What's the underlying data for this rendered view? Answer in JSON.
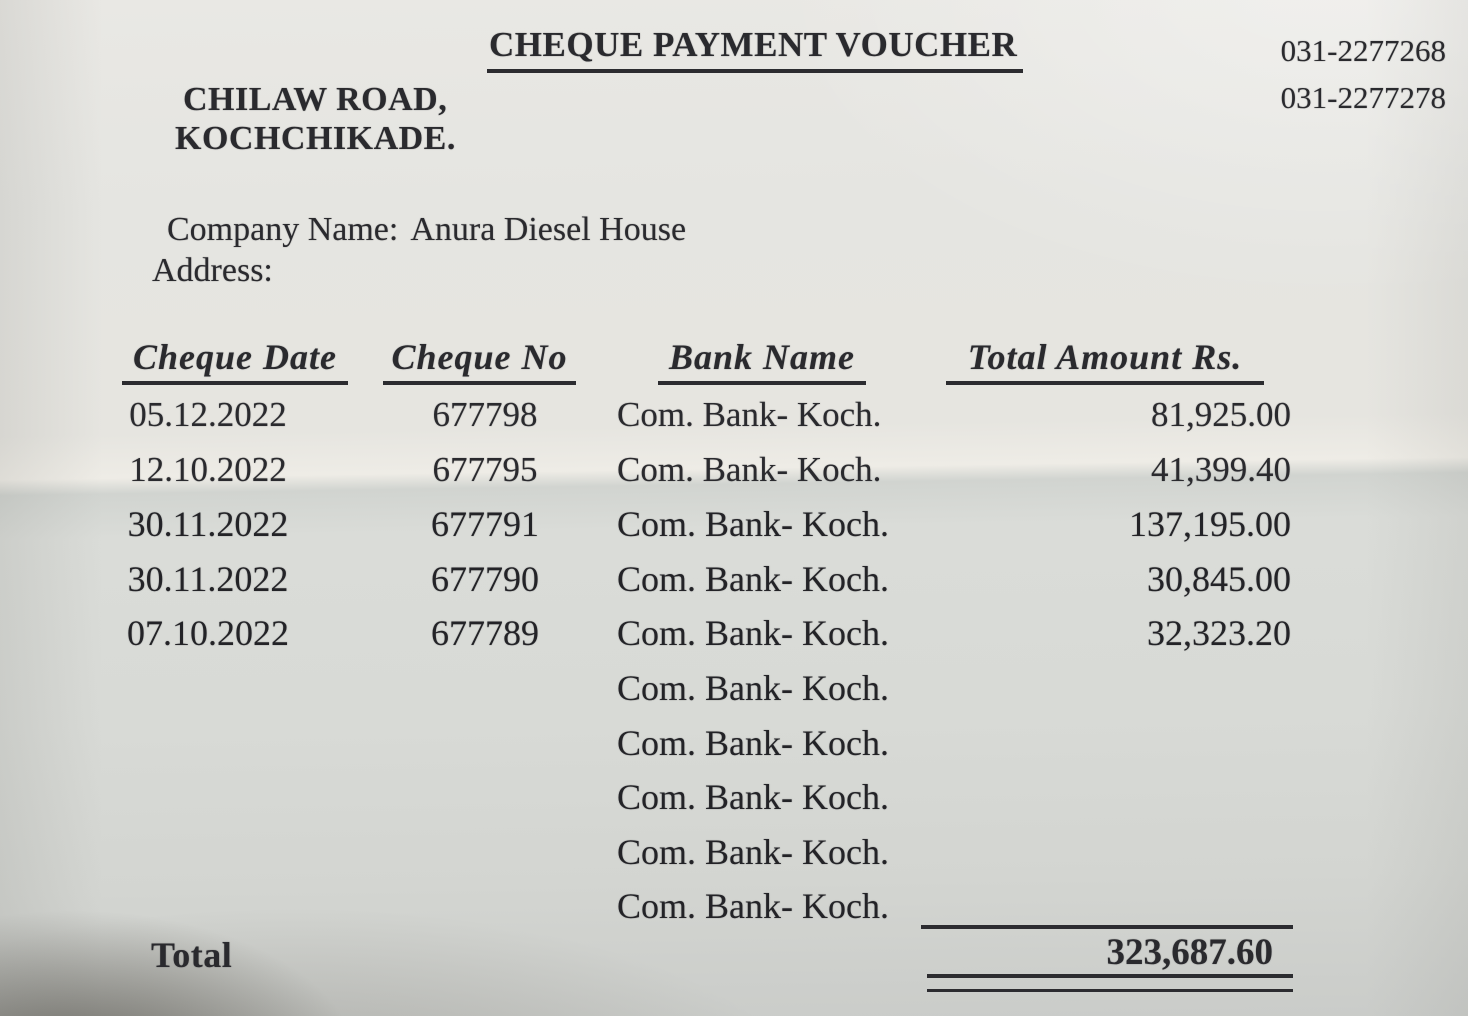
{
  "document": {
    "title": "CHEQUE PAYMENT VOUCHER",
    "phone_numbers": [
      "031-2277268",
      "031-2277278"
    ],
    "address_lines": [
      "CHILAW ROAD,",
      "KOCHCHIKADE."
    ],
    "company_label": "Company Name:",
    "company_name": "Anura Diesel House",
    "address_label": "Address:"
  },
  "table": {
    "headers": [
      "Cheque Date",
      "Cheque No",
      "Bank Name",
      "Total Amount Rs."
    ],
    "rows": [
      {
        "date": "05.12.2022",
        "cheque_no": "677798",
        "bank": "Com. Bank- Koch.",
        "amount": "81,925.00"
      },
      {
        "date": "12.10.2022",
        "cheque_no": "677795",
        "bank": "Com. Bank- Koch.",
        "amount": "41,399.40"
      },
      {
        "date": "30.11.2022",
        "cheque_no": "677791",
        "bank": "Com. Bank- Koch.",
        "amount": "137,195.00"
      },
      {
        "date": "30.11.2022",
        "cheque_no": "677790",
        "bank": "Com. Bank- Koch.",
        "amount": "30,845.00"
      },
      {
        "date": "07.10.2022",
        "cheque_no": "677789",
        "bank": "Com. Bank- Koch.",
        "amount": "32,323.20"
      },
      {
        "date": "",
        "cheque_no": "",
        "bank": "Com. Bank- Koch.",
        "amount": ""
      },
      {
        "date": "",
        "cheque_no": "",
        "bank": "Com. Bank- Koch.",
        "amount": ""
      },
      {
        "date": "",
        "cheque_no": "",
        "bank": "Com. Bank- Koch.",
        "amount": ""
      },
      {
        "date": "",
        "cheque_no": "",
        "bank": "Com. Bank- Koch.",
        "amount": ""
      },
      {
        "date": "",
        "cheque_no": "",
        "bank": "Com. Bank- Koch.",
        "amount": ""
      }
    ],
    "total_label": "Total",
    "total_amount": "323,687.60"
  },
  "colors": {
    "paper_light": "#e9e8e4",
    "paper_shaded": "#d8dad6",
    "ink": "#2a2a2e"
  }
}
